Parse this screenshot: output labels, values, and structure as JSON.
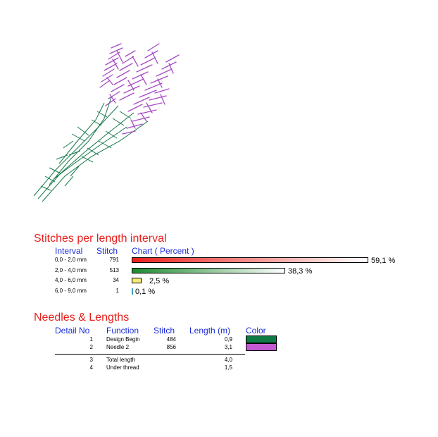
{
  "stitch_section": {
    "title": "Stitches per length interval",
    "headers": {
      "interval": "Interval",
      "stitch": "Stitch",
      "chart": "Chart ( Percent )"
    },
    "rows": [
      {
        "interval": "0,0 - 2,0 mm",
        "stitch": "791",
        "percent": 59.1,
        "percent_label": "59,1 %",
        "color_start": "#e8201c",
        "color_end": "#ffffff"
      },
      {
        "interval": "2,0 - 4,0 mm",
        "stitch": "513",
        "percent": 38.3,
        "percent_label": "38,3 %",
        "color_start": "#1e8a2e",
        "color_end": "#ffffff"
      },
      {
        "interval": "4,0 - 6,0 mm",
        "stitch": "34",
        "percent": 2.5,
        "percent_label": "2,5 %",
        "color_start": "#f4ec7a",
        "color_end": "#f4ec7a"
      },
      {
        "interval": "6,0 - 9,0 mm",
        "stitch": "1",
        "percent": 0.1,
        "percent_label": "0,1 %",
        "color_start": "#3aa0b8",
        "color_end": "#3aa0b8"
      }
    ]
  },
  "needles_section": {
    "title": "Needles & Lengths",
    "headers": {
      "detail": "Detail No",
      "function": "Function",
      "stitch": "Stitch",
      "length": "Length (m)",
      "color": "Color"
    },
    "rows": [
      {
        "detail": "1",
        "function": "Design Begin",
        "stitch": "484",
        "length": "0,9",
        "color": "#0f7a44"
      },
      {
        "detail": "2",
        "function": "Needle 2",
        "stitch": "856",
        "length": "3,1",
        "color": "#c35ad2"
      }
    ],
    "totals": [
      {
        "detail": "3",
        "function": "Total length",
        "length": "4,0"
      },
      {
        "detail": "4",
        "function": "Under thread",
        "length": "1,5"
      }
    ]
  }
}
